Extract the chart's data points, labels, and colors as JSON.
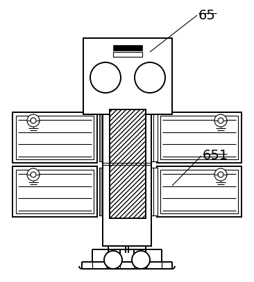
{
  "bg_color": "#ffffff",
  "line_color": "#000000",
  "label_65": "65",
  "label_651": "651",
  "figsize": [
    3.66,
    4.07
  ],
  "dpi": 100
}
